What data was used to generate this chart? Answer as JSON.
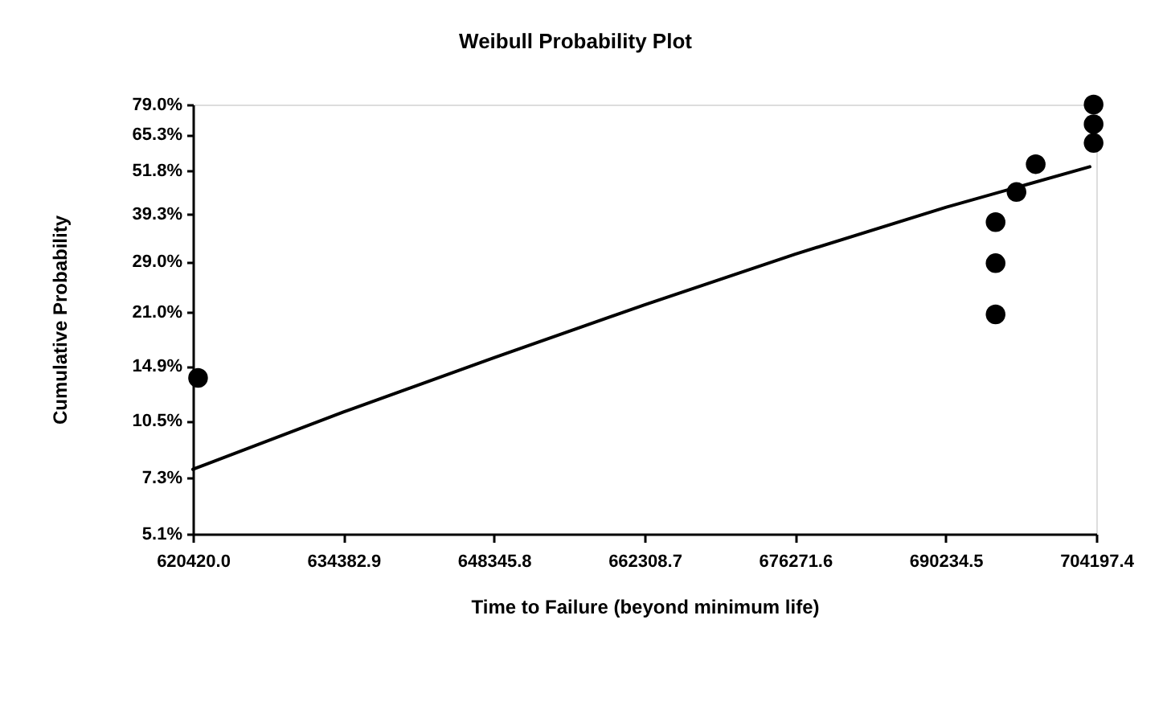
{
  "chart_data": {
    "type": "scatter",
    "title": "Weibull Probability Plot",
    "xlabel": "Time to Failure (beyond minimum life)",
    "ylabel": "Cumulative Probability",
    "xlim": [
      620420.0,
      704197.4
    ],
    "xticks": [
      {
        "value": 620420.0,
        "label": "620420.0"
      },
      {
        "value": 634382.9,
        "label": "634382.9"
      },
      {
        "value": 648345.8,
        "label": "648345.8"
      },
      {
        "value": 662308.7,
        "label": "662308.7"
      },
      {
        "value": 676271.6,
        "label": "676271.6"
      },
      {
        "value": 690234.5,
        "label": "690234.5"
      },
      {
        "value": 704197.4,
        "label": "704197.4"
      }
    ],
    "ylim": [
      5.1,
      79.0
    ],
    "yticks": [
      {
        "value": 5.1,
        "label": "5.1%"
      },
      {
        "value": 7.3,
        "label": "7.3%"
      },
      {
        "value": 10.5,
        "label": "10.5%"
      },
      {
        "value": 14.9,
        "label": "14.9%"
      },
      {
        "value": 21.0,
        "label": "21.0%"
      },
      {
        "value": 29.0,
        "label": "29.0%"
      },
      {
        "value": 39.3,
        "label": "39.3%"
      },
      {
        "value": 51.8,
        "label": "51.8%"
      },
      {
        "value": 65.3,
        "label": "65.3%"
      },
      {
        "value": 79.0,
        "label": "79.0%"
      }
    ],
    "log": "y",
    "series": [
      {
        "color": "#000000",
        "x": [
          620900,
          694860,
          694860,
          694860,
          696800,
          698580,
          703950,
          703950,
          703950
        ],
        "values": [
          13.8,
          20.7,
          28.7,
          37.3,
          45.2,
          54.0,
          61.8,
          69.7,
          79.0
        ]
      },
      {
        "type": "line",
        "color": "#000000",
        "marker": "none",
        "line_style": "solid",
        "x": [
          620420.0,
          634382.9,
          648345.8,
          662308.7,
          676271.6,
          690234.5,
          703600
        ],
        "values": [
          7.7,
          11.1,
          15.7,
          22.0,
          30.4,
          41.0,
          53.1
        ]
      }
    ],
    "marker": "circle"
  }
}
